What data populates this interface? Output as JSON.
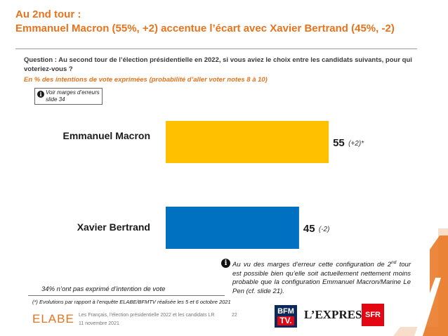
{
  "header": {
    "title_line1": "Au 2nd tour :",
    "title_line2": "Emmanuel Macron (55%, +2) accentue l’écart avec Xavier Bertrand (45%, -2)"
  },
  "question": {
    "text": "Question : Au second tour de l’élection présidentielle en 2022, si vous aviez le choix entre les candidats suivants, pour qui voteriez-vous ?",
    "subtitle": "En % des intentions de vote exprimées (probabilité d’aller voter notes 8 à 10)"
  },
  "margin_note": {
    "icon": "info-icon",
    "text": "Voir marges d’erreurs slide 34"
  },
  "chart_data": {
    "type": "bar",
    "orientation": "horizontal",
    "categories": [
      "Emmanuel Macron",
      "Xavier Bertrand"
    ],
    "values": [
      55,
      45
    ],
    "deltas": [
      "(+2)*",
      "(-2)"
    ],
    "colors": [
      "#ffc000",
      "#0070c0"
    ],
    "xlim": [
      0,
      100
    ],
    "grid": false,
    "legend": "none"
  },
  "info_note": {
    "icon": "info-icon",
    "before": "Au vu des marges d’erreur cette configuration de 2",
    "sup": "nd",
    "after": " tour est possible bien qu’elle soit actuellement nettement moins probable que la configuration Emmanuel Macron/Marine Le Pen (cf. slide 21)."
  },
  "abstention": "34% n’ont pas exprimé d’intention de vote",
  "evolution_note": "(*) Evolutions par rapport à l’enquête ELABE/BFMTV réalisée les 5 et 6 octobre 2021",
  "footer": {
    "logo": "ELABE",
    "source": "Les Français, l’élection présidentielle 2022 et les candidats LR",
    "date": "11 novembre 2021",
    "page": "22",
    "partners": {
      "bfm_line1": "BFM",
      "bfm_line2": "TV.",
      "express": "L’EXPRESS",
      "sfr": "SFR"
    }
  }
}
